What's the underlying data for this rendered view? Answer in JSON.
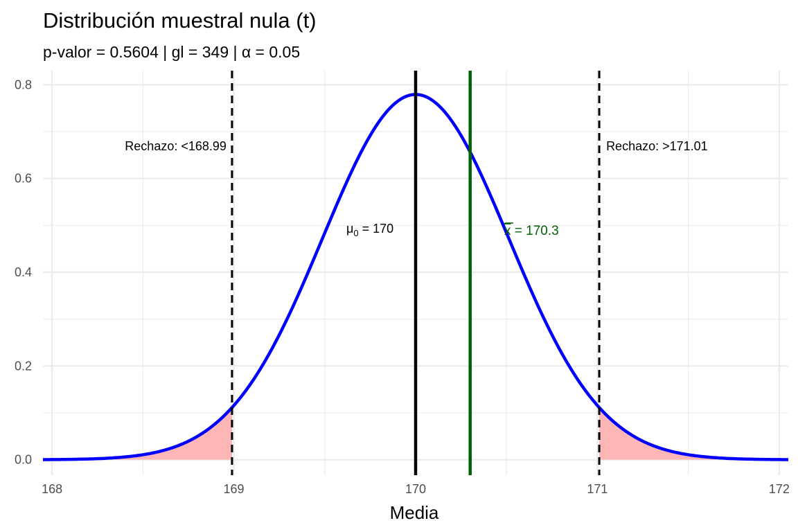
{
  "chart_data": {
    "type": "line",
    "title": "Distribución muestral nula (t)",
    "subtitle": "p-valor = 0.5604  |  gl = 349  |  α = 0.05",
    "xlabel": "Media",
    "ylabel": "",
    "xlim": [
      167.95,
      172.05
    ],
    "ylim": [
      0,
      0.8
    ],
    "x_ticks": [
      "168",
      "169",
      "170",
      "171",
      "172"
    ],
    "y_ticks": [
      "0.0",
      "0.2",
      "0.4",
      "0.6",
      "0.8"
    ],
    "grid": true,
    "series": [
      {
        "color": "#0000ff",
        "x": [
          167.95,
          168.2,
          168.4,
          168.6,
          168.8,
          168.99,
          169.2,
          169.4,
          169.6,
          169.8,
          170.0,
          170.2,
          170.4,
          170.6,
          170.8,
          171.01,
          171.2,
          171.4,
          171.6,
          171.8,
          172.05
        ],
        "y": [
          0.002,
          0.004,
          0.009,
          0.024,
          0.058,
          0.112,
          0.224,
          0.377,
          0.573,
          0.722,
          0.779,
          0.722,
          0.573,
          0.377,
          0.224,
          0.112,
          0.058,
          0.024,
          0.009,
          0.004,
          0.002
        ]
      }
    ],
    "mean_line": {
      "x": 170.0,
      "color": "#000000",
      "label_sym": "μ",
      "label_sub": "0",
      "label_rest": " = 170"
    },
    "sample_line": {
      "x": 170.3,
      "color": "#006400",
      "label_sym": "x",
      "label_rest": " = 170.3"
    },
    "critical_lines": [
      {
        "x": 168.99,
        "label": "Rechazo: <168.99"
      },
      {
        "x": 171.01,
        "label": "Rechazo: >171.01"
      }
    ],
    "rejection_fill_color": "#ffb6b6",
    "curve_params": {
      "mean": 170.0,
      "sd": 0.512
    }
  }
}
